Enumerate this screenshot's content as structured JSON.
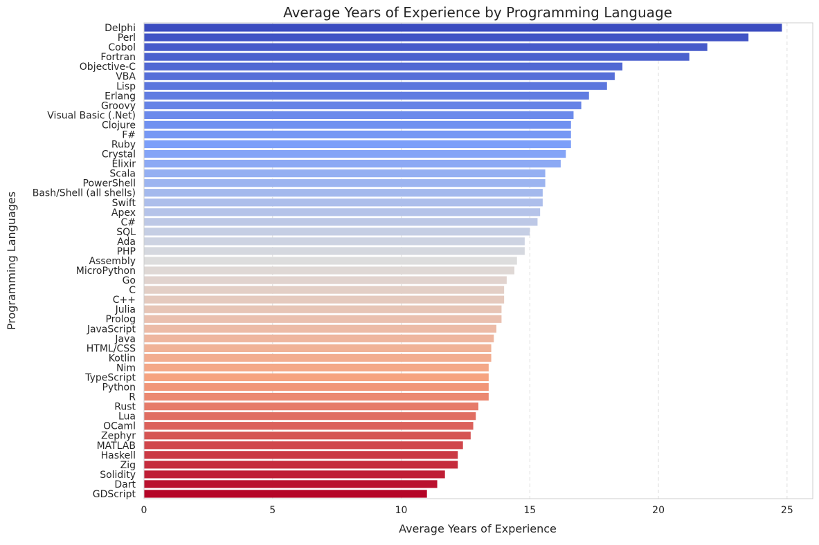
{
  "chart_data": {
    "type": "bar",
    "orientation": "horizontal",
    "title": "Average Years of Experience by Programming Language",
    "xlabel": "Average Years of Experience",
    "ylabel": "Programming Languages",
    "xlim": [
      0,
      26
    ],
    "xticks": [
      0,
      5,
      10,
      15,
      20,
      25
    ],
    "grid": "x-dashed",
    "palette": "coolwarm",
    "categories": [
      "Delphi",
      "Perl",
      "Cobol",
      "Fortran",
      "Objective-C",
      "VBA",
      "Lisp",
      "Erlang",
      "Groovy",
      "Visual Basic (.Net)",
      "Clojure",
      "F#",
      "Ruby",
      "Crystal",
      "Elixir",
      "Scala",
      "PowerShell",
      "Bash/Shell (all shells)",
      "Swift",
      "Apex",
      "C#",
      "SQL",
      "Ada",
      "PHP",
      "Assembly",
      "MicroPython",
      "Go",
      "C",
      "C++",
      "Julia",
      "Prolog",
      "JavaScript",
      "Java",
      "HTML/CSS",
      "Kotlin",
      "Nim",
      "TypeScript",
      "Python",
      "R",
      "Rust",
      "Lua",
      "OCaml",
      "Zephyr",
      "MATLAB",
      "Haskell",
      "Zig",
      "Solidity",
      "Dart",
      "GDScript"
    ],
    "values": [
      24.8,
      23.5,
      21.9,
      21.2,
      18.6,
      18.3,
      18.0,
      17.3,
      17.0,
      16.7,
      16.6,
      16.6,
      16.6,
      16.4,
      16.2,
      15.6,
      15.6,
      15.5,
      15.5,
      15.4,
      15.3,
      15.0,
      14.8,
      14.8,
      14.5,
      14.4,
      14.1,
      14.0,
      14.0,
      13.9,
      13.9,
      13.7,
      13.6,
      13.5,
      13.5,
      13.4,
      13.4,
      13.4,
      13.4,
      13.0,
      12.9,
      12.8,
      12.7,
      12.4,
      12.2,
      12.2,
      11.7,
      11.4,
      11.0
    ]
  }
}
